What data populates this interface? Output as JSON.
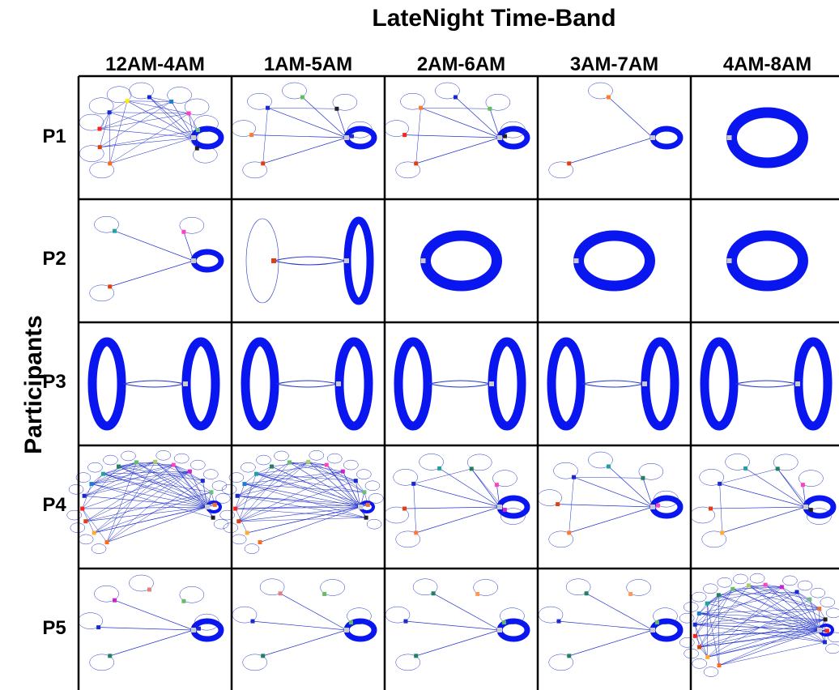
{
  "title": "LateNight Time-Band",
  "y_axis_label": "Participants",
  "columns": [
    "12AM-4AM",
    "1AM-5AM",
    "2AM-6AM",
    "3AM-7AM",
    "4AM-8AM"
  ],
  "rows": [
    "P1",
    "P2",
    "P3",
    "P4",
    "P5"
  ],
  "colors": {
    "edge": "#2233cc",
    "self_loop": "#0a16f0",
    "grid": "#000000"
  },
  "cells": [
    [
      {
        "center_loop": "thick",
        "sats": [
          "#ff6a1a",
          "#e04010",
          "#ff2020",
          "#1a2ad0",
          "#ffee00",
          "#1a2ad0",
          "#1a7fd0",
          "#ff40c0",
          "#6abf7a",
          "#202020"
        ],
        "edges": "dense"
      },
      {
        "center_loop": "thick",
        "sats": [
          "#e04010",
          "#ff7a30",
          "#1a2ad0",
          "#66bb66",
          "#202020",
          "#1a2ad0"
        ],
        "edges": "medium"
      },
      {
        "center_loop": "thick",
        "sats": [
          "#e04010",
          "#ff2020",
          "#ff7a30",
          "#1a2ad0",
          "#66bb66",
          "#202020"
        ],
        "edges": "medium"
      },
      {
        "center_loop": "thick",
        "sats": [
          "#e04010",
          "#ff7a30"
        ],
        "edges": "sparse"
      },
      {
        "center_loop": "big",
        "sats": [],
        "edges": "none"
      }
    ],
    [
      {
        "center_loop": "thick",
        "sats": [
          "#e04010",
          "#20a0a0",
          "#ff40c0"
        ],
        "edges": "sparse"
      },
      {
        "center_loop": "tall_pair",
        "sats": [
          "#e04010"
        ],
        "edges": "pair"
      },
      {
        "center_loop": "big",
        "sats": [],
        "edges": "none"
      },
      {
        "center_loop": "big",
        "sats": [],
        "edges": "none"
      },
      {
        "center_loop": "big",
        "sats": [],
        "edges": "none"
      }
    ],
    [
      {
        "center_loop": "dual",
        "sats": [],
        "edges": "pair"
      },
      {
        "center_loop": "dual",
        "sats": [],
        "edges": "pair"
      },
      {
        "center_loop": "dual",
        "sats": [],
        "edges": "pair"
      },
      {
        "center_loop": "dual",
        "sats": [],
        "edges": "pair"
      },
      {
        "center_loop": "dual",
        "sats": [],
        "edges": "pair"
      }
    ],
    [
      {
        "center_loop": "small",
        "sats": [
          "#ff6a1a",
          "#ffaa30",
          "#e04010",
          "#ff2020",
          "#1a2ad0",
          "#1a7fd0",
          "#20a0a0",
          "#208060",
          "#66bb66",
          "#aacc66",
          "#ff40c0",
          "#cc22cc",
          "#1a2ad0",
          "#6abf7a",
          "#f07030",
          "#202020"
        ],
        "edges": "dense"
      },
      {
        "center_loop": "small",
        "sats": [
          "#ff6a1a",
          "#ffaa30",
          "#e04010",
          "#ff2020",
          "#1a2ad0",
          "#1a7fd0",
          "#20a0a0",
          "#208060",
          "#66bb66",
          "#aacc66",
          "#ff40c0",
          "#cc22cc",
          "#1a2ad0",
          "#6abf7a",
          "#f07030",
          "#202020"
        ],
        "edges": "dense"
      },
      {
        "center_loop": "thick",
        "sats": [
          "#ff7a30",
          "#e04010",
          "#1a2ad0",
          "#20a0a0",
          "#208060",
          "#ff40c0",
          "#cc22cc"
        ],
        "edges": "medium"
      },
      {
        "center_loop": "thick",
        "sats": [
          "#ff7a30",
          "#e04010",
          "#1a2ad0",
          "#20a0a0",
          "#208060",
          "#ff40c0"
        ],
        "edges": "medium"
      },
      {
        "center_loop": "thick",
        "sats": [
          "#ffaa30",
          "#e04010",
          "#1a2ad0",
          "#20a0a0",
          "#208060",
          "#ff40c0",
          "#202020"
        ],
        "edges": "medium"
      }
    ],
    [
      {
        "center_loop": "thick",
        "sats": [
          "#208060",
          "#1a2ad0",
          "#cc22cc",
          "#e08080",
          "#66bb66",
          "#1a2ad0"
        ],
        "edges": "sparse"
      },
      {
        "center_loop": "thick",
        "sats": [
          "#208060",
          "#1a2ad0",
          "#e08080",
          "#66bb66",
          "#66bb66"
        ],
        "edges": "sparse"
      },
      {
        "center_loop": "thick",
        "sats": [
          "#208060",
          "#1a2ad0",
          "#208060",
          "#ff9a50",
          "#66bb66"
        ],
        "edges": "sparse"
      },
      {
        "center_loop": "thick",
        "sats": [
          "#208060",
          "#1a2ad0",
          "#208060",
          "#ff9a50",
          "#66bb66"
        ],
        "edges": "sparse"
      },
      {
        "center_loop": "small",
        "sats": [
          "#ff6a1a",
          "#ffaa30",
          "#e04010",
          "#ff2020",
          "#1a2ad0",
          "#1a7fd0",
          "#20a0a0",
          "#208060",
          "#66bb66",
          "#aacc66",
          "#ff40c0",
          "#cc22cc",
          "#1a2ad0",
          "#6abf7a",
          "#f07030",
          "#202020",
          "#ff2020",
          "#1a2ad0"
        ],
        "edges": "dense"
      }
    ]
  ]
}
